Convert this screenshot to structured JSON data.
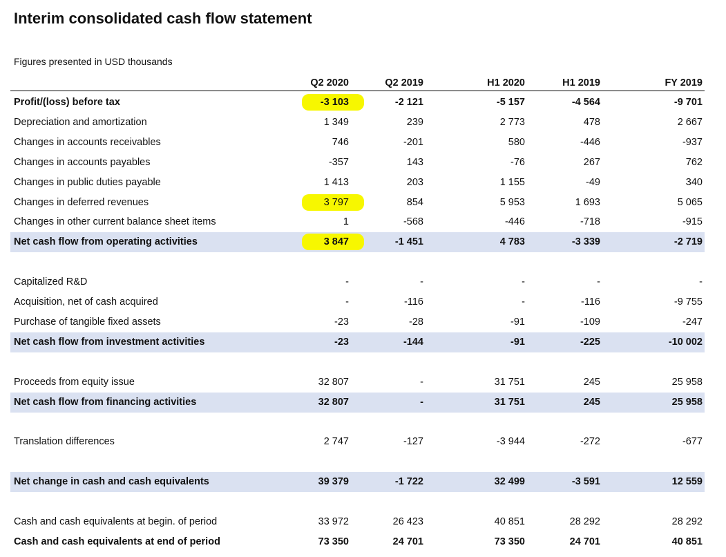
{
  "header": {
    "title": "Interim consolidated cash flow statement",
    "subtitle": "Figures presented in USD thousands"
  },
  "table": {
    "columns": [
      "Q2 2020",
      "Q2 2019",
      "H1 2020",
      "H1 2019",
      "FY 2019"
    ],
    "sections": [
      {
        "rows": [
          {
            "label": "Profit/(loss) before tax",
            "values": [
              "-3 103",
              "-2 121",
              "-5 157",
              "-4 564",
              "-9 701"
            ],
            "bold": true,
            "highlight": "#f7f700"
          },
          {
            "label": "Depreciation and amortization",
            "values": [
              "1 349",
              "239",
              "2 773",
              "478",
              "2 667"
            ]
          },
          {
            "label": "Changes in accounts receivables",
            "values": [
              "746",
              "-201",
              "580",
              "-446",
              "-937"
            ]
          },
          {
            "label": "Changes in accounts payables",
            "values": [
              "-357",
              "143",
              "-76",
              "267",
              "762"
            ]
          },
          {
            "label": "Changes in public duties payable",
            "values": [
              "1 413",
              "203",
              "1 155",
              "-49",
              "340"
            ]
          },
          {
            "label": "Changes in deferred revenues",
            "values": [
              "3 797",
              "854",
              "5 953",
              "1 693",
              "5 065"
            ],
            "highlight": "#f7f700"
          },
          {
            "label": "Changes in other current balance sheet items",
            "values": [
              "1",
              "-568",
              "-446",
              "-718",
              "-915"
            ]
          },
          {
            "label": "Net cash flow from operating activities",
            "values": [
              "3 847",
              "-1 451",
              "4 783",
              "-3 339",
              "-2 719"
            ],
            "bold": true,
            "shade": "#dae1f1",
            "highlight": "#f7f700"
          }
        ]
      },
      {
        "rows": [
          {
            "label": "Capitalized R&D",
            "values": [
              "-",
              "-",
              "-",
              "-",
              "-"
            ]
          },
          {
            "label": "Acquisition, net of cash acquired",
            "values": [
              "-",
              "-116",
              "-",
              "-116",
              "-9 755"
            ]
          },
          {
            "label": "Purchase of tangible fixed assets",
            "values": [
              "-23",
              "-28",
              "-91",
              "-109",
              "-247"
            ]
          },
          {
            "label": "Net cash flow from investment activities",
            "values": [
              "-23",
              "-144",
              "-91",
              "-225",
              "-10 002"
            ],
            "bold": true,
            "shade": "#dae1f1"
          }
        ]
      },
      {
        "rows": [
          {
            "label": "Proceeds from equity issue",
            "values": [
              "32 807",
              "-",
              "31 751",
              "245",
              "25 958"
            ]
          },
          {
            "label": "Net cash flow from financing activities",
            "values": [
              "32 807",
              "-",
              "31 751",
              "245",
              "25 958"
            ],
            "bold": true,
            "shade": "#dae1f1"
          }
        ]
      },
      {
        "rows": [
          {
            "label": "Translation differences",
            "values": [
              "2 747",
              "-127",
              "-3 944",
              "-272",
              "-677"
            ]
          }
        ]
      },
      {
        "rows": [
          {
            "label": "Net change in cash and cash equivalents",
            "values": [
              "39 379",
              "-1 722",
              "32 499",
              "-3 591",
              "12 559"
            ],
            "bold": true,
            "shade": "#dae1f1"
          }
        ]
      },
      {
        "rows": [
          {
            "label": "Cash and cash equivalents at begin. of period",
            "values": [
              "33 972",
              "26 423",
              "40 851",
              "28 292",
              "28 292"
            ]
          },
          {
            "label": "Cash and cash equivalents at end of period",
            "values": [
              "73 350",
              "24 701",
              "73 350",
              "24 701",
              "40 851"
            ],
            "bold": true
          }
        ]
      }
    ]
  }
}
